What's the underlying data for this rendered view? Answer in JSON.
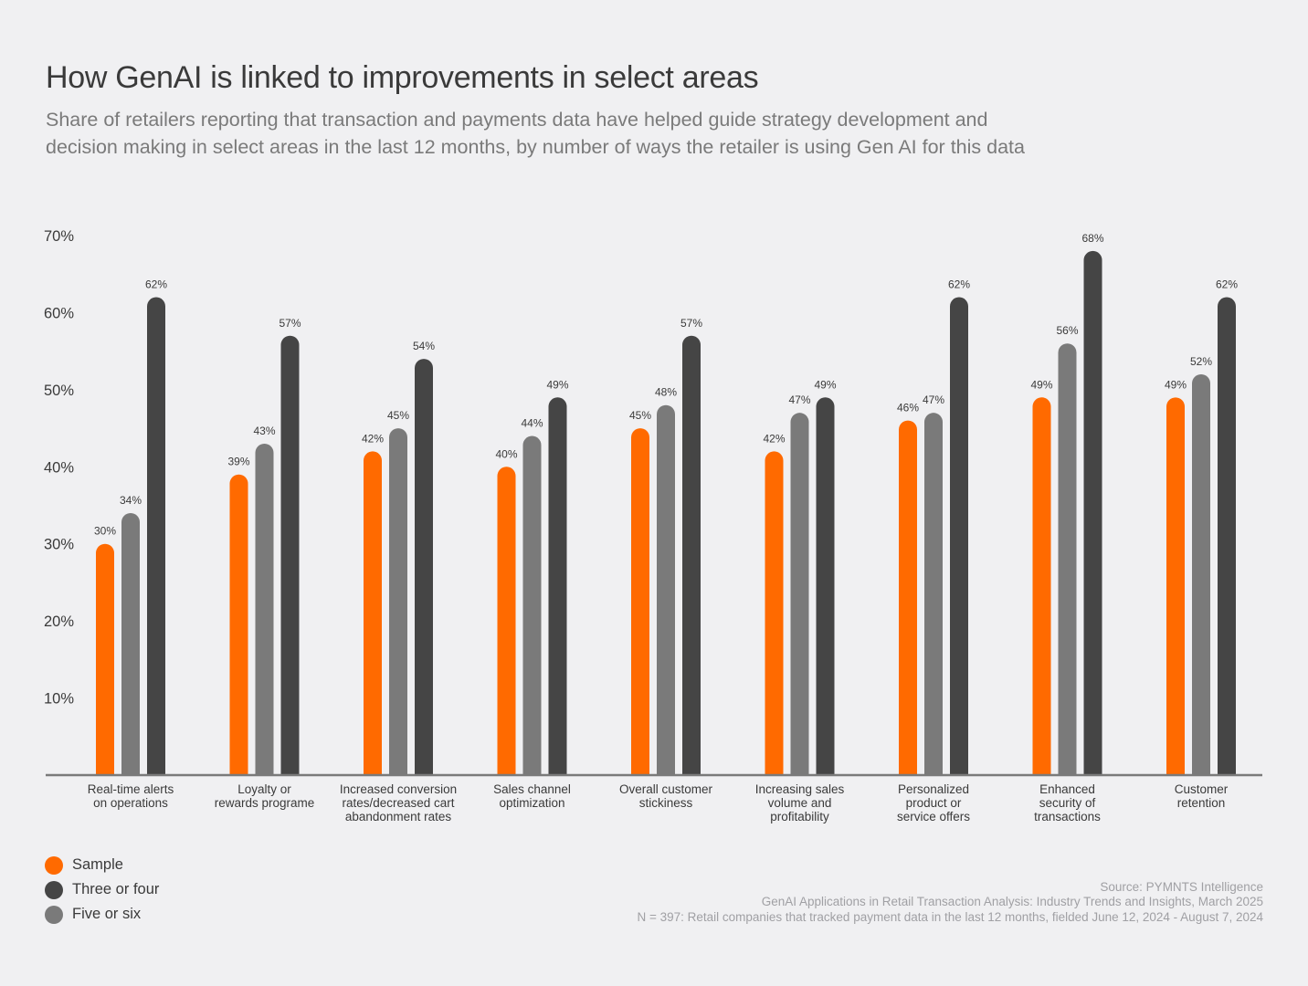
{
  "title": "How GenAI is linked to improvements in select areas",
  "subtitle": [
    "Share of retailers reporting that transaction and payments data have helped guide strategy development and",
    "decision making in select areas in the last 12 months, by number of ways the retailer is using Gen AI for this data"
  ],
  "colors": {
    "sample": "#ff6a00",
    "three_or_four": "#454545",
    "five_or_six": "#7a7a7a",
    "axis": "#7a7a7a"
  },
  "legend": [
    {
      "name": "Sample",
      "color": "#ff6a00"
    },
    {
      "name": "Three or four",
      "color": "#454545"
    },
    {
      "name": "Five or six",
      "color": "#7a7a7a"
    }
  ],
  "source": [
    "Source: PYMNTS Intelligence",
    "GenAI Applications in Retail Transaction Analysis: Industry Trends and Insights, March 2025",
    "N = 397: Retail companies that tracked payment data in the last 12 months, fielded June 12, 2024 - August 7, 2024"
  ],
  "chart_data": {
    "type": "bar",
    "title": "How GenAI is linked to improvements in select areas",
    "xlabel": "",
    "ylabel": "",
    "ylim": [
      0,
      70
    ],
    "yticks": [
      "10%",
      "20%",
      "30%",
      "40%",
      "50%",
      "60%",
      "70%"
    ],
    "grid": false,
    "legend_position": "bottom-left",
    "categories": [
      [
        "Real-time alerts",
        "on operations"
      ],
      [
        "Loyalty or",
        "rewards programe"
      ],
      [
        "Increased conversion",
        "rates/decreased cart",
        "abandonment rates"
      ],
      [
        "Sales channel",
        "optimization"
      ],
      [
        "Overall customer",
        "stickiness"
      ],
      [
        "Increasing sales",
        "volume and",
        "profitability"
      ],
      [
        "Personalized",
        "product or",
        "service offers"
      ],
      [
        "Enhanced",
        "security of",
        "transactions"
      ],
      [
        "Customer",
        "retention"
      ]
    ],
    "series": [
      {
        "name": "Sample",
        "values": [
          30,
          39,
          42,
          40,
          45,
          42,
          46,
          49,
          49
        ],
        "labels": [
          "30%",
          "39%",
          "42%",
          "40%",
          "45%",
          "42%",
          "46%",
          "49%",
          "49%"
        ]
      },
      {
        "name": "Five or six",
        "values": [
          34,
          43,
          45,
          44,
          48,
          47,
          47,
          56,
          52
        ],
        "labels": [
          "34%",
          "43%",
          "45%",
          "44%",
          "48%",
          "47%",
          "47%",
          "56%",
          "52%"
        ]
      },
      {
        "name": "Three or four",
        "values": [
          62,
          57,
          54,
          49,
          57,
          49,
          62,
          68,
          62
        ],
        "labels": [
          "62%",
          "57%",
          "54%",
          "49%",
          "57%",
          "49%",
          "62%",
          "68%",
          "62%"
        ]
      }
    ]
  }
}
